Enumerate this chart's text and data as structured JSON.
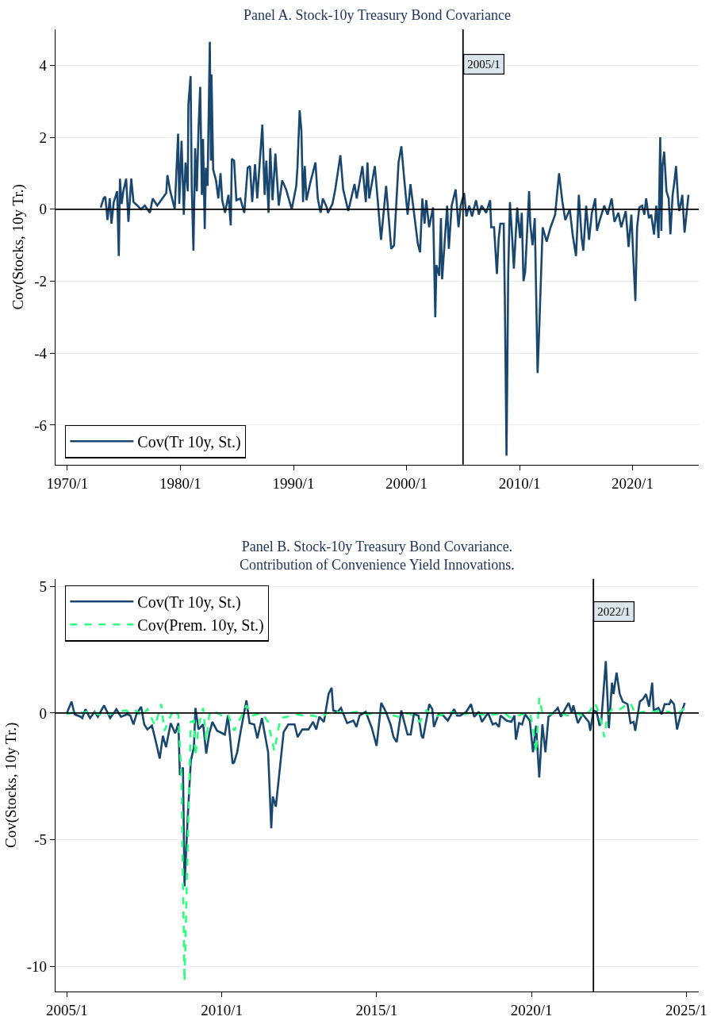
{
  "chart_data": [
    {
      "type": "line",
      "title": "Panel A. Stock-10y Treasury Bond Covariance",
      "ylabel": "Cov(Stocks, 10y Tr.)",
      "xlim": [
        "1968-12-13",
        "2025-11-10"
      ],
      "xticks": [
        {
          "value": "1970-01-01",
          "label": "1970/1"
        },
        {
          "value": "1980-01-01",
          "label": "1980/1"
        },
        {
          "value": "1990-01-01",
          "label": "1990/1"
        },
        {
          "value": "2000-01-01",
          "label": "2000/1"
        },
        {
          "value": "2010-01-01",
          "label": "2010/1"
        },
        {
          "value": "2020-01-01",
          "label": "2020/1"
        }
      ],
      "ylim": [
        -7.1,
        5
      ],
      "yticks": [
        -6,
        -4,
        -2,
        0,
        2,
        4
      ],
      "grid": "y",
      "legend": "bottom left",
      "ref_lines": [
        {
          "axis": "y",
          "value": 0,
          "color": "#000000"
        },
        {
          "axis": "x",
          "value": "2005-01-01",
          "label": "2005/1",
          "color": "#000000"
        }
      ],
      "series": [
        {
          "name": "Cov(Tr 10y, St.)",
          "color": "#1a476f",
          "line_style": "solid",
          "x": [
            "1972-12-13",
            "1973-03-15",
            "1973-05-09",
            "1973-07-20",
            "1973-10-01",
            "1973-11-25",
            "1974-02-07",
            "1974-05-27",
            "1974-07-20",
            "1974-08-26",
            "1974-10-19",
            "1974-12-13",
            "1975-03-15",
            "1975-05-27",
            "1975-08-26",
            "1975-11-07",
            "1976-03-15",
            "1976-07-02",
            "1976-11-07",
            "1977-04-20",
            "1977-07-20",
            "1977-12-13",
            "1978-05-27",
            "1978-10-01",
            "1978-11-07",
            "1979-02-07",
            "1979-07-02",
            "1979-10-19",
            "1979-11-25",
            "1980-02-07",
            "1980-04-20",
            "1980-06-14",
            "1980-08-26",
            "1980-09-13",
            "1980-11-25",
            "1981-01-01",
            "1981-02-25",
            "1981-04-20",
            "1981-06-14",
            "1981-08-08",
            "1981-10-01",
            "1981-11-25",
            "1982-01-01",
            "1982-02-25",
            "1982-04-02",
            "1982-05-27",
            "1982-08-08",
            "1982-09-13",
            "1982-10-01",
            "1982-11-25",
            "1983-02-25",
            "1983-05-09",
            "1983-07-20",
            "1983-09-13",
            "1983-12-13",
            "1984-04-02",
            "1984-06-14",
            "1984-07-20",
            "1984-10-01",
            "1984-12-13",
            "1985-04-20",
            "1985-08-26",
            "1985-12-13",
            "1986-02-25",
            "1986-05-09",
            "1986-08-08",
            "1986-10-19",
            "1987-04-02",
            "1987-06-14",
            "1987-08-08",
            "1987-10-19",
            "1987-12-13",
            "1988-02-25",
            "1988-05-27",
            "1988-09-13",
            "1989-01-01",
            "1989-05-09",
            "1989-11-07",
            "1990-04-02",
            "1990-05-09",
            "1990-07-20",
            "1990-09-13",
            "1990-11-07",
            "1991-01-01",
            "1991-02-25",
            "1991-07-02",
            "1991-12-13",
            "1992-02-25",
            "1992-05-27",
            "1992-08-08",
            "1992-12-13",
            "1993-01-19",
            "1993-06-14",
            "1993-09-13",
            "1994-02-25",
            "1994-05-27",
            "1994-11-07",
            "1995-05-27",
            "1995-08-08",
            "1996-02-07",
            "1996-05-27",
            "1996-07-20",
            "1996-09-13",
            "1997-03-15",
            "1997-10-01",
            "1998-03-15",
            "1998-08-26",
            "1998-11-25",
            "1999-04-20",
            "1999-07-20",
            "1999-10-19",
            "2000-02-07",
            "2000-05-09",
            "2001-01-01",
            "2001-03-15",
            "2001-05-27",
            "2001-08-08",
            "2001-10-01",
            "2002-01-01",
            "2002-05-09",
            "2002-07-20",
            "2002-08-26",
            "2002-11-25",
            "2003-01-19",
            "2003-02-25",
            "2003-08-08",
            "2003-10-01",
            "2004-01-01",
            "2004-05-09",
            "2004-08-08",
            "2004-10-19",
            "2005-02-07",
            "2005-04-20",
            "2005-07-20",
            "2005-10-19",
            "2006-02-25",
            "2006-05-27",
            "2006-08-26",
            "2007-01-19",
            "2007-05-27",
            "2007-07-02",
            "2007-10-01",
            "2008-01-01",
            "2008-02-25",
            "2008-04-20",
            "2008-08-08",
            "2008-09-13",
            "2008-11-07",
            "2009-01-01",
            "2009-02-25",
            "2009-04-20",
            "2009-07-02",
            "2009-10-19",
            "2010-01-19",
            "2010-03-15",
            "2010-05-09",
            "2010-07-02",
            "2010-11-07",
            "2010-12-13",
            "2011-02-25",
            "2011-05-09",
            "2011-08-08",
            "2011-10-01",
            "2012-01-19",
            "2012-05-27",
            "2012-10-01",
            "2013-02-25",
            "2013-07-02",
            "2013-10-19",
            "2014-01-19",
            "2014-06-14",
            "2014-09-13",
            "2015-01-01",
            "2015-04-02",
            "2015-07-02",
            "2015-08-26",
            "2015-11-25",
            "2016-02-25",
            "2016-05-27",
            "2016-09-13",
            "2016-11-07",
            "2017-02-07",
            "2017-07-02",
            "2017-10-19",
            "2018-02-25",
            "2018-05-27",
            "2018-10-01",
            "2019-01-01",
            "2019-05-27",
            "2019-08-26",
            "2019-11-25",
            "2020-02-07",
            "2020-04-02",
            "2020-05-27",
            "2020-08-08",
            "2020-11-07",
            "2021-01-19",
            "2021-03-15",
            "2021-06-14",
            "2021-08-26",
            "2021-11-25",
            "2022-02-07",
            "2022-04-20",
            "2022-06-14",
            "2022-07-20",
            "2022-08-26",
            "2022-10-19",
            "2023-01-01",
            "2023-03-15",
            "2023-05-09",
            "2023-07-20",
            "2023-09-13",
            "2023-11-07",
            "2024-01-19",
            "2024-02-25",
            "2024-05-27",
            "2024-08-08",
            "2024-12-13"
          ],
          "values": [
            0.05,
            0.3,
            0.35,
            -0.3,
            0.3,
            -0.4,
            0.2,
            0.5,
            -1.3,
            0.85,
            0.15,
            0.5,
            0.85,
            -0.35,
            0.85,
            0.2,
            0.1,
            0.0,
            0.1,
            -0.1,
            0.3,
            0.1,
            0.3,
            0.45,
            0.95,
            0.5,
            0.0,
            2.1,
            0.15,
            1.9,
            -0.15,
            1.3,
            0.5,
            2.9,
            3.7,
            0.65,
            -1.15,
            1.7,
            0.5,
            2.25,
            3.4,
            0.4,
            1.95,
            -0.55,
            1.15,
            0.65,
            4.65,
            1.35,
            3.75,
            1.1,
            0.8,
            0.3,
            1.0,
            0.25,
            -0.1,
            0.4,
            -0.45,
            1.4,
            1.35,
            0.25,
            0.3,
            -0.1,
            1.15,
            1.2,
            0.2,
            1.25,
            0.3,
            2.35,
            0.4,
            1.35,
            -0.1,
            1.7,
            0.25,
            1.55,
            0.1,
            0.8,
            0.55,
            0.0,
            0.65,
            1.15,
            2.75,
            2.2,
            0.2,
            1.2,
            0.25,
            0.75,
            1.3,
            0.3,
            -0.1,
            0.3,
            0.05,
            -0.1,
            0.15,
            0.55,
            1.5,
            0.55,
            -0.05,
            0.7,
            0.3,
            1.2,
            0.2,
            1.3,
            0.3,
            1.2,
            -0.85,
            0.65,
            -1.1,
            -1.0,
            1.3,
            1.75,
            0.85,
            -0.15,
            0.7,
            -0.95,
            -1.2,
            0.3,
            -0.4,
            0.25,
            -0.5,
            0.05,
            -3.0,
            -1.55,
            -1.85,
            -0.25,
            -1.95,
            0.1,
            -1.1,
            0.1,
            0.55,
            -0.5,
            0.1,
            0.45,
            -0.2,
            0.1,
            -0.2,
            0.25,
            -0.15,
            0.1,
            -0.1,
            0.25,
            -0.5,
            -0.5,
            -1.8,
            -0.85,
            -0.4,
            -0.4,
            -2.45,
            -6.85,
            -1.75,
            0.2,
            -0.5,
            -1.65,
            0.05,
            -0.8,
            -0.1,
            -2.0,
            -1.75,
            0.5,
            -0.4,
            -1.0,
            -0.25,
            -4.55,
            -3.3,
            -0.5,
            -0.9,
            -0.5,
            -0.15,
            1.0,
            0.2,
            -0.3,
            0.0,
            -0.7,
            -1.3,
            0.4,
            -0.8,
            -1.15,
            0.1,
            -0.85,
            -0.1,
            0.3,
            -0.6,
            -0.3,
            0.1,
            -0.15,
            0.3,
            -0.35,
            -0.1,
            -0.5,
            -0.05,
            -1.05,
            -0.15,
            -1.55,
            -2.55,
            -0.5,
            0.05,
            0.1,
            -0.15,
            0.3,
            -0.25,
            -0.15,
            -0.7,
            0.1,
            -0.8,
            2.0,
            -0.6,
            1.2,
            1.6,
            0.5,
            0.3,
            -0.7,
            0.4,
            0.75,
            1.2,
            0.15,
            -0.05,
            0.4,
            -0.65,
            0.4
          ]
        }
      ]
    },
    {
      "type": "line",
      "title": "Panel B. Stock-10y Treasury Bond Covariance.\nContribution of Convenience Yield Innovations.",
      "ylabel": "Cov(Stocks, 10y Tr.)",
      "xlim": [
        "2004-08-20",
        "2025-05-27"
      ],
      "xticks": [
        {
          "value": "2005-01-01",
          "label": "2005/1"
        },
        {
          "value": "2010-01-01",
          "label": "2010/1"
        },
        {
          "value": "2015-01-01",
          "label": "2015/1"
        },
        {
          "value": "2020-01-01",
          "label": "2020/1"
        },
        {
          "value": "2025-01-01",
          "label": "2025/1"
        }
      ],
      "ylim": [
        -11,
        5.3
      ],
      "yticks": [
        -10,
        -5,
        0,
        5
      ],
      "grid": "y",
      "legend": "top left",
      "ref_lines": [
        {
          "axis": "y",
          "value": 0,
          "color": "#000000"
        },
        {
          "axis": "x",
          "value": "2022-01-01",
          "label": "2022/1",
          "color": "#000000"
        }
      ],
      "series": [
        {
          "name": "Cov(Tr 10y, St.)",
          "color": "#1a476f",
          "line_style": "solid",
          "x": [
            "2005-01-01",
            "2005-02-25",
            "2005-04-02",
            "2005-06-14",
            "2005-07-02",
            "2005-08-08",
            "2005-10-01",
            "2005-11-25",
            "2006-01-01",
            "2006-03-15",
            "2006-05-27",
            "2006-08-08",
            "2006-10-01",
            "2006-12-13",
            "2007-01-19",
            "2007-02-25",
            "2007-04-02",
            "2007-05-27",
            "2007-07-02",
            "2007-08-08",
            "2007-10-01",
            "2007-11-07",
            "2008-01-01",
            "2008-02-07",
            "2008-03-15",
            "2008-05-09",
            "2008-07-02",
            "2008-08-08",
            "2008-08-26",
            "2008-10-01",
            "2008-10-19",
            "2008-11-25",
            "2009-01-01",
            "2009-02-07",
            "2009-02-25",
            "2009-04-02",
            "2009-05-27",
            "2009-07-02",
            "2009-08-08",
            "2009-09-13",
            "2009-11-07",
            "2010-02-07",
            "2010-03-15",
            "2010-05-09",
            "2010-05-27",
            "2010-07-02",
            "2010-08-08",
            "2010-10-19",
            "2010-11-25",
            "2011-01-19",
            "2011-02-25",
            "2011-04-20",
            "2011-07-02",
            "2011-08-08",
            "2011-08-26",
            "2011-10-01",
            "2012-01-01",
            "2012-02-25",
            "2012-05-09",
            "2012-06-14",
            "2012-08-08",
            "2012-10-19",
            "2012-12-13",
            "2013-01-19",
            "2013-02-25",
            "2013-04-20",
            "2013-06-14",
            "2013-07-20",
            "2013-08-08",
            "2013-10-01",
            "2013-11-07",
            "2014-01-19",
            "2014-04-02",
            "2014-05-09",
            "2014-06-14",
            "2014-08-26",
            "2014-11-07",
            "2015-01-01",
            "2015-02-25",
            "2015-04-20",
            "2015-06-14",
            "2015-07-20",
            "2015-08-26",
            "2015-10-19",
            "2016-01-01",
            "2016-02-07",
            "2016-03-15",
            "2016-05-09",
            "2016-06-14",
            "2016-07-02",
            "2016-09-13",
            "2016-10-19",
            "2016-11-07",
            "2017-01-01",
            "2017-02-25",
            "2017-04-20",
            "2017-07-02",
            "2017-08-08",
            "2017-09-13",
            "2017-11-25",
            "2018-01-19",
            "2018-02-25",
            "2018-04-20",
            "2018-05-27",
            "2018-08-08",
            "2018-10-01",
            "2018-11-07",
            "2018-12-13",
            "2019-01-01",
            "2019-03-15",
            "2019-05-09",
            "2019-06-14",
            "2019-07-02",
            "2019-08-08",
            "2019-09-13",
            "2019-10-19",
            "2019-12-13",
            "2020-01-19",
            "2020-02-25",
            "2020-04-02",
            "2020-05-09",
            "2020-06-14",
            "2020-07-20",
            "2020-09-13",
            "2020-11-07",
            "2020-12-13",
            "2021-03-15",
            "2021-04-20",
            "2021-05-09",
            "2021-07-02",
            "2021-08-26",
            "2021-11-07",
            "2021-11-25",
            "2022-01-01",
            "2022-02-07",
            "2022-03-15",
            "2022-04-02",
            "2022-05-27",
            "2022-07-02",
            "2022-08-08",
            "2022-08-26",
            "2022-10-01",
            "2022-11-07",
            "2022-12-13",
            "2023-02-07",
            "2023-03-15",
            "2023-04-20",
            "2023-05-09",
            "2023-07-02",
            "2023-08-08",
            "2023-09-13",
            "2023-10-19",
            "2023-11-25",
            "2023-12-13",
            "2024-02-07",
            "2024-03-15",
            "2024-04-20",
            "2024-06-14",
            "2024-07-02",
            "2024-08-08",
            "2024-09-13",
            "2024-10-19",
            "2024-12-13"
          ],
          "values": [
            0.0,
            0.45,
            -0.05,
            -0.15,
            -0.2,
            0.15,
            -0.2,
            0.05,
            -0.15,
            0.3,
            -0.2,
            0.15,
            -0.15,
            -0.05,
            -0.1,
            -0.45,
            -0.05,
            0.25,
            -0.45,
            -0.65,
            -0.5,
            -1.0,
            -1.8,
            -0.9,
            -1.35,
            -0.4,
            -0.8,
            -0.4,
            -2.45,
            -2.15,
            -6.85,
            -4.2,
            -1.9,
            -1.35,
            0.2,
            -0.65,
            -0.45,
            -1.6,
            -0.8,
            -0.35,
            -0.7,
            -0.85,
            -0.1,
            -2.0,
            -1.95,
            -1.55,
            -0.8,
            0.5,
            -0.4,
            -0.45,
            -1.0,
            -0.2,
            -1.55,
            -4.55,
            -3.3,
            -3.7,
            -0.75,
            -0.45,
            -0.45,
            -0.95,
            -0.65,
            -0.65,
            -0.35,
            -0.65,
            -0.15,
            -0.35,
            0.75,
            1.0,
            0.1,
            0.05,
            0.2,
            -0.4,
            -0.3,
            -0.55,
            -0.1,
            0.05,
            -0.6,
            -1.3,
            0.4,
            0.05,
            -0.45,
            -0.95,
            -1.15,
            0.1,
            -0.85,
            -0.85,
            -0.05,
            -0.1,
            -0.9,
            -1.0,
            0.35,
            0.15,
            -0.55,
            -0.05,
            -0.1,
            -0.3,
            0.15,
            -0.1,
            -0.1,
            0.05,
            0.35,
            -0.15,
            0.05,
            -0.35,
            0.0,
            -0.45,
            -0.4,
            -0.55,
            -0.1,
            -0.3,
            -0.35,
            -0.1,
            -1.05,
            -0.4,
            -0.45,
            -0.05,
            -0.3,
            -1.55,
            -0.5,
            -2.55,
            -0.45,
            -1.55,
            -0.15,
            0.0,
            0.2,
            -0.15,
            0.4,
            0.0,
            0.3,
            -0.4,
            -0.05,
            -0.35,
            -0.7,
            0.1,
            0.05,
            -0.5,
            -0.4,
            2.05,
            -0.6,
            1.2,
            0.75,
            1.6,
            0.75,
            0.45,
            0.35,
            -0.4,
            -0.35,
            -0.7,
            0.45,
            0.55,
            0.75,
            0.25,
            1.2,
            0.1,
            0.2,
            -0.05,
            0.35,
            0.35,
            0.5,
            0.35,
            -0.65,
            -0.15,
            0.4
          ]
        },
        {
          "name": "Cov(Prem. 10y, St.)",
          "color": "#2bff7f",
          "line_style": "dashed",
          "x": [
            "2005-01-01",
            "2005-04-02",
            "2005-07-02",
            "2005-10-19",
            "2006-01-01",
            "2006-05-09",
            "2006-08-26",
            "2006-11-25",
            "2007-02-07",
            "2007-04-02",
            "2007-05-27",
            "2007-08-08",
            "2007-11-07",
            "2008-01-19",
            "2008-02-25",
            "2008-05-09",
            "2008-07-02",
            "2008-08-08",
            "2008-09-13",
            "2008-10-19",
            "2008-11-25",
            "2009-01-01",
            "2009-02-07",
            "2009-02-25",
            "2009-04-02",
            "2009-05-27",
            "2009-07-02",
            "2009-08-08",
            "2009-10-01",
            "2010-01-19",
            "2010-03-15",
            "2010-05-27",
            "2010-07-20",
            "2010-10-19",
            "2011-01-01",
            "2011-04-20",
            "2011-07-02",
            "2011-09-13",
            "2011-11-25",
            "2012-02-07",
            "2012-05-27",
            "2012-08-26",
            "2012-12-13",
            "2013-03-15",
            "2013-05-27",
            "2013-08-26",
            "2014-01-01",
            "2014-05-27",
            "2014-09-13",
            "2015-01-01",
            "2015-04-20",
            "2015-09-13",
            "2016-01-19",
            "2016-05-27",
            "2016-08-08",
            "2016-11-25",
            "2017-05-27",
            "2017-10-01",
            "2018-02-07",
            "2018-07-02",
            "2018-11-07",
            "2019-02-07",
            "2019-05-09",
            "2019-09-13",
            "2019-12-13",
            "2020-01-19",
            "2020-02-25",
            "2020-04-02",
            "2020-05-09",
            "2020-08-08",
            "2020-11-07",
            "2021-02-25",
            "2021-06-14",
            "2021-09-13",
            "2021-11-25",
            "2022-01-19",
            "2022-03-15",
            "2022-05-09",
            "2022-06-14",
            "2022-08-08",
            "2022-10-19",
            "2023-02-07",
            "2023-03-15",
            "2023-05-09",
            "2023-08-08",
            "2023-11-25",
            "2024-03-15",
            "2024-06-14",
            "2024-08-26",
            "2024-12-13"
          ],
          "values": [
            -0.05,
            0.05,
            0.0,
            0.1,
            -0.05,
            -0.05,
            0.05,
            0.1,
            0.0,
            0.1,
            -0.15,
            0.15,
            -0.5,
            0.35,
            -0.7,
            -0.1,
            0.15,
            -0.1,
            -2.55,
            -10.6,
            -5.4,
            -0.35,
            -0.3,
            -1.7,
            -0.55,
            0.2,
            -1.1,
            -0.05,
            0.1,
            -0.15,
            -0.05,
            -0.7,
            -0.35,
            0.3,
            -0.1,
            0.0,
            -0.35,
            -1.5,
            -0.2,
            -0.15,
            -0.05,
            -0.1,
            -0.1,
            -0.2,
            0.0,
            0.05,
            0.0,
            0.05,
            -0.05,
            0.0,
            0.0,
            -0.15,
            0.0,
            -0.35,
            0.1,
            -0.15,
            0.05,
            -0.1,
            0.05,
            -0.1,
            -0.05,
            0.0,
            -0.2,
            -0.05,
            0.0,
            -0.55,
            -1.55,
            0.6,
            0.0,
            -0.05,
            0.05,
            -0.1,
            0.0,
            -0.15,
            0.1,
            0.4,
            -0.05,
            -0.95,
            -0.1,
            0.15,
            0.1,
            0.35,
            0.4,
            -0.05,
            0.05,
            0.05,
            0.1,
            0.05,
            -0.1,
            0.2
          ]
        }
      ]
    }
  ]
}
